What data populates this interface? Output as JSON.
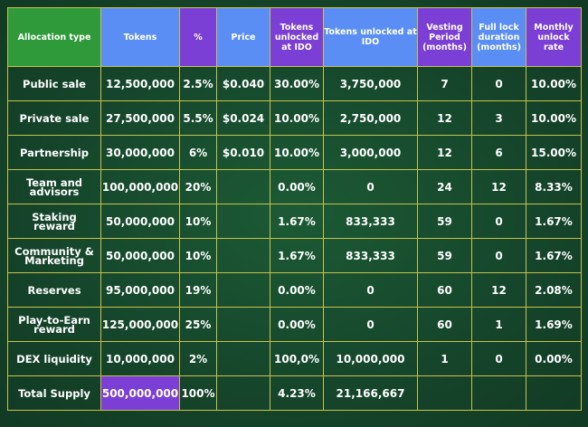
{
  "table": {
    "headers": [
      "Allocation type",
      "Tokens",
      "%",
      "Price",
      "Tokens unlocked at IDO",
      "Tokens unlocked at IDO",
      "Vesting Period (months)",
      "Full lock duration (months)",
      "Monthly unlock rate"
    ],
    "header_colors": {
      "green": "#2f9a3a",
      "blue": "#5b8ef5",
      "purple": "#7b3fd6"
    },
    "rows": [
      [
        "Public sale",
        "12,500,000",
        "2.5%",
        "$0.040",
        "30.00%",
        "3,750,000",
        "7",
        "0",
        "10.00%"
      ],
      [
        "Private sale",
        "27,500,000",
        "5.5%",
        "$0.024",
        "10.00%",
        "2,750,000",
        "12",
        "3",
        "10.00%"
      ],
      [
        "Partnership",
        "30,000,000",
        "6%",
        "$0.010",
        "10.00%",
        "3,000,000",
        "12",
        "6",
        "15.00%"
      ],
      [
        "Team and advisors",
        "100,000,000",
        "20%",
        "",
        "0.00%",
        "0",
        "24",
        "12",
        "8.33%"
      ],
      [
        "Staking reward",
        "50,000,000",
        "10%",
        "",
        "1.67%",
        "833,333",
        "59",
        "0",
        "1.67%"
      ],
      [
        "Community & Marketing",
        "50,000,000",
        "10%",
        "",
        "1.67%",
        "833,333",
        "59",
        "0",
        "1.67%"
      ],
      [
        "Reserves",
        "95,000,000",
        "19%",
        "",
        "0.00%",
        "0",
        "60",
        "12",
        "2.08%"
      ],
      [
        "Play-to-Earn reward",
        "125,000,000",
        "25%",
        "",
        "0.00%",
        "0",
        "60",
        "1",
        "1.69%"
      ],
      [
        "DEX liquidity",
        "10,000,000",
        "2%",
        "",
        "100,0%",
        "10,000,000",
        "1",
        "0",
        "0.00%"
      ]
    ],
    "total": [
      "Total Supply",
      "500,000,000",
      "100%",
      "",
      "4.23%",
      "21,166,667",
      "",
      "",
      ""
    ]
  }
}
